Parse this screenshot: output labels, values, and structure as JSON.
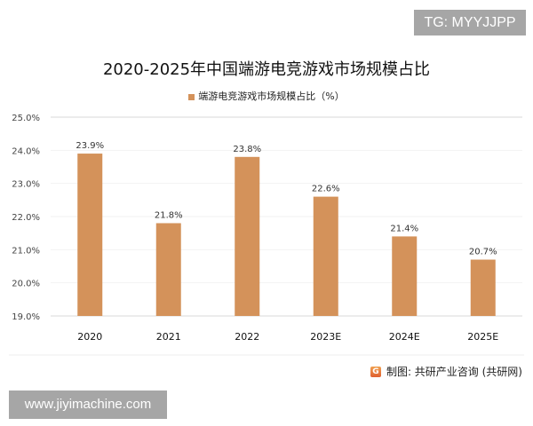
{
  "watermark_top": "TG: MYYJJPP",
  "watermark_bottom": "www.jiyimachine.com",
  "source": "制图: 共研产业咨询 (共研网)",
  "chart_data": {
    "type": "bar",
    "title": "2020-2025年中国端游电竞游戏市场规模占比",
    "categories": [
      "2020",
      "2021",
      "2022",
      "2023E",
      "2024E",
      "2025E"
    ],
    "series": [
      {
        "name": "端游电竞游戏市场规模占比（%）",
        "values": [
          23.9,
          21.8,
          23.8,
          22.6,
          21.4,
          20.7
        ],
        "color": "#d4925a"
      }
    ],
    "data_labels": [
      "23.9%",
      "21.8%",
      "23.8%",
      "22.6%",
      "21.4%",
      "20.7%"
    ],
    "yticks": [
      "19.0%",
      "20.0%",
      "21.0%",
      "22.0%",
      "23.0%",
      "24.0%",
      "25.0%"
    ],
    "ylim": [
      19,
      25
    ],
    "legend": "top",
    "grid": false
  }
}
